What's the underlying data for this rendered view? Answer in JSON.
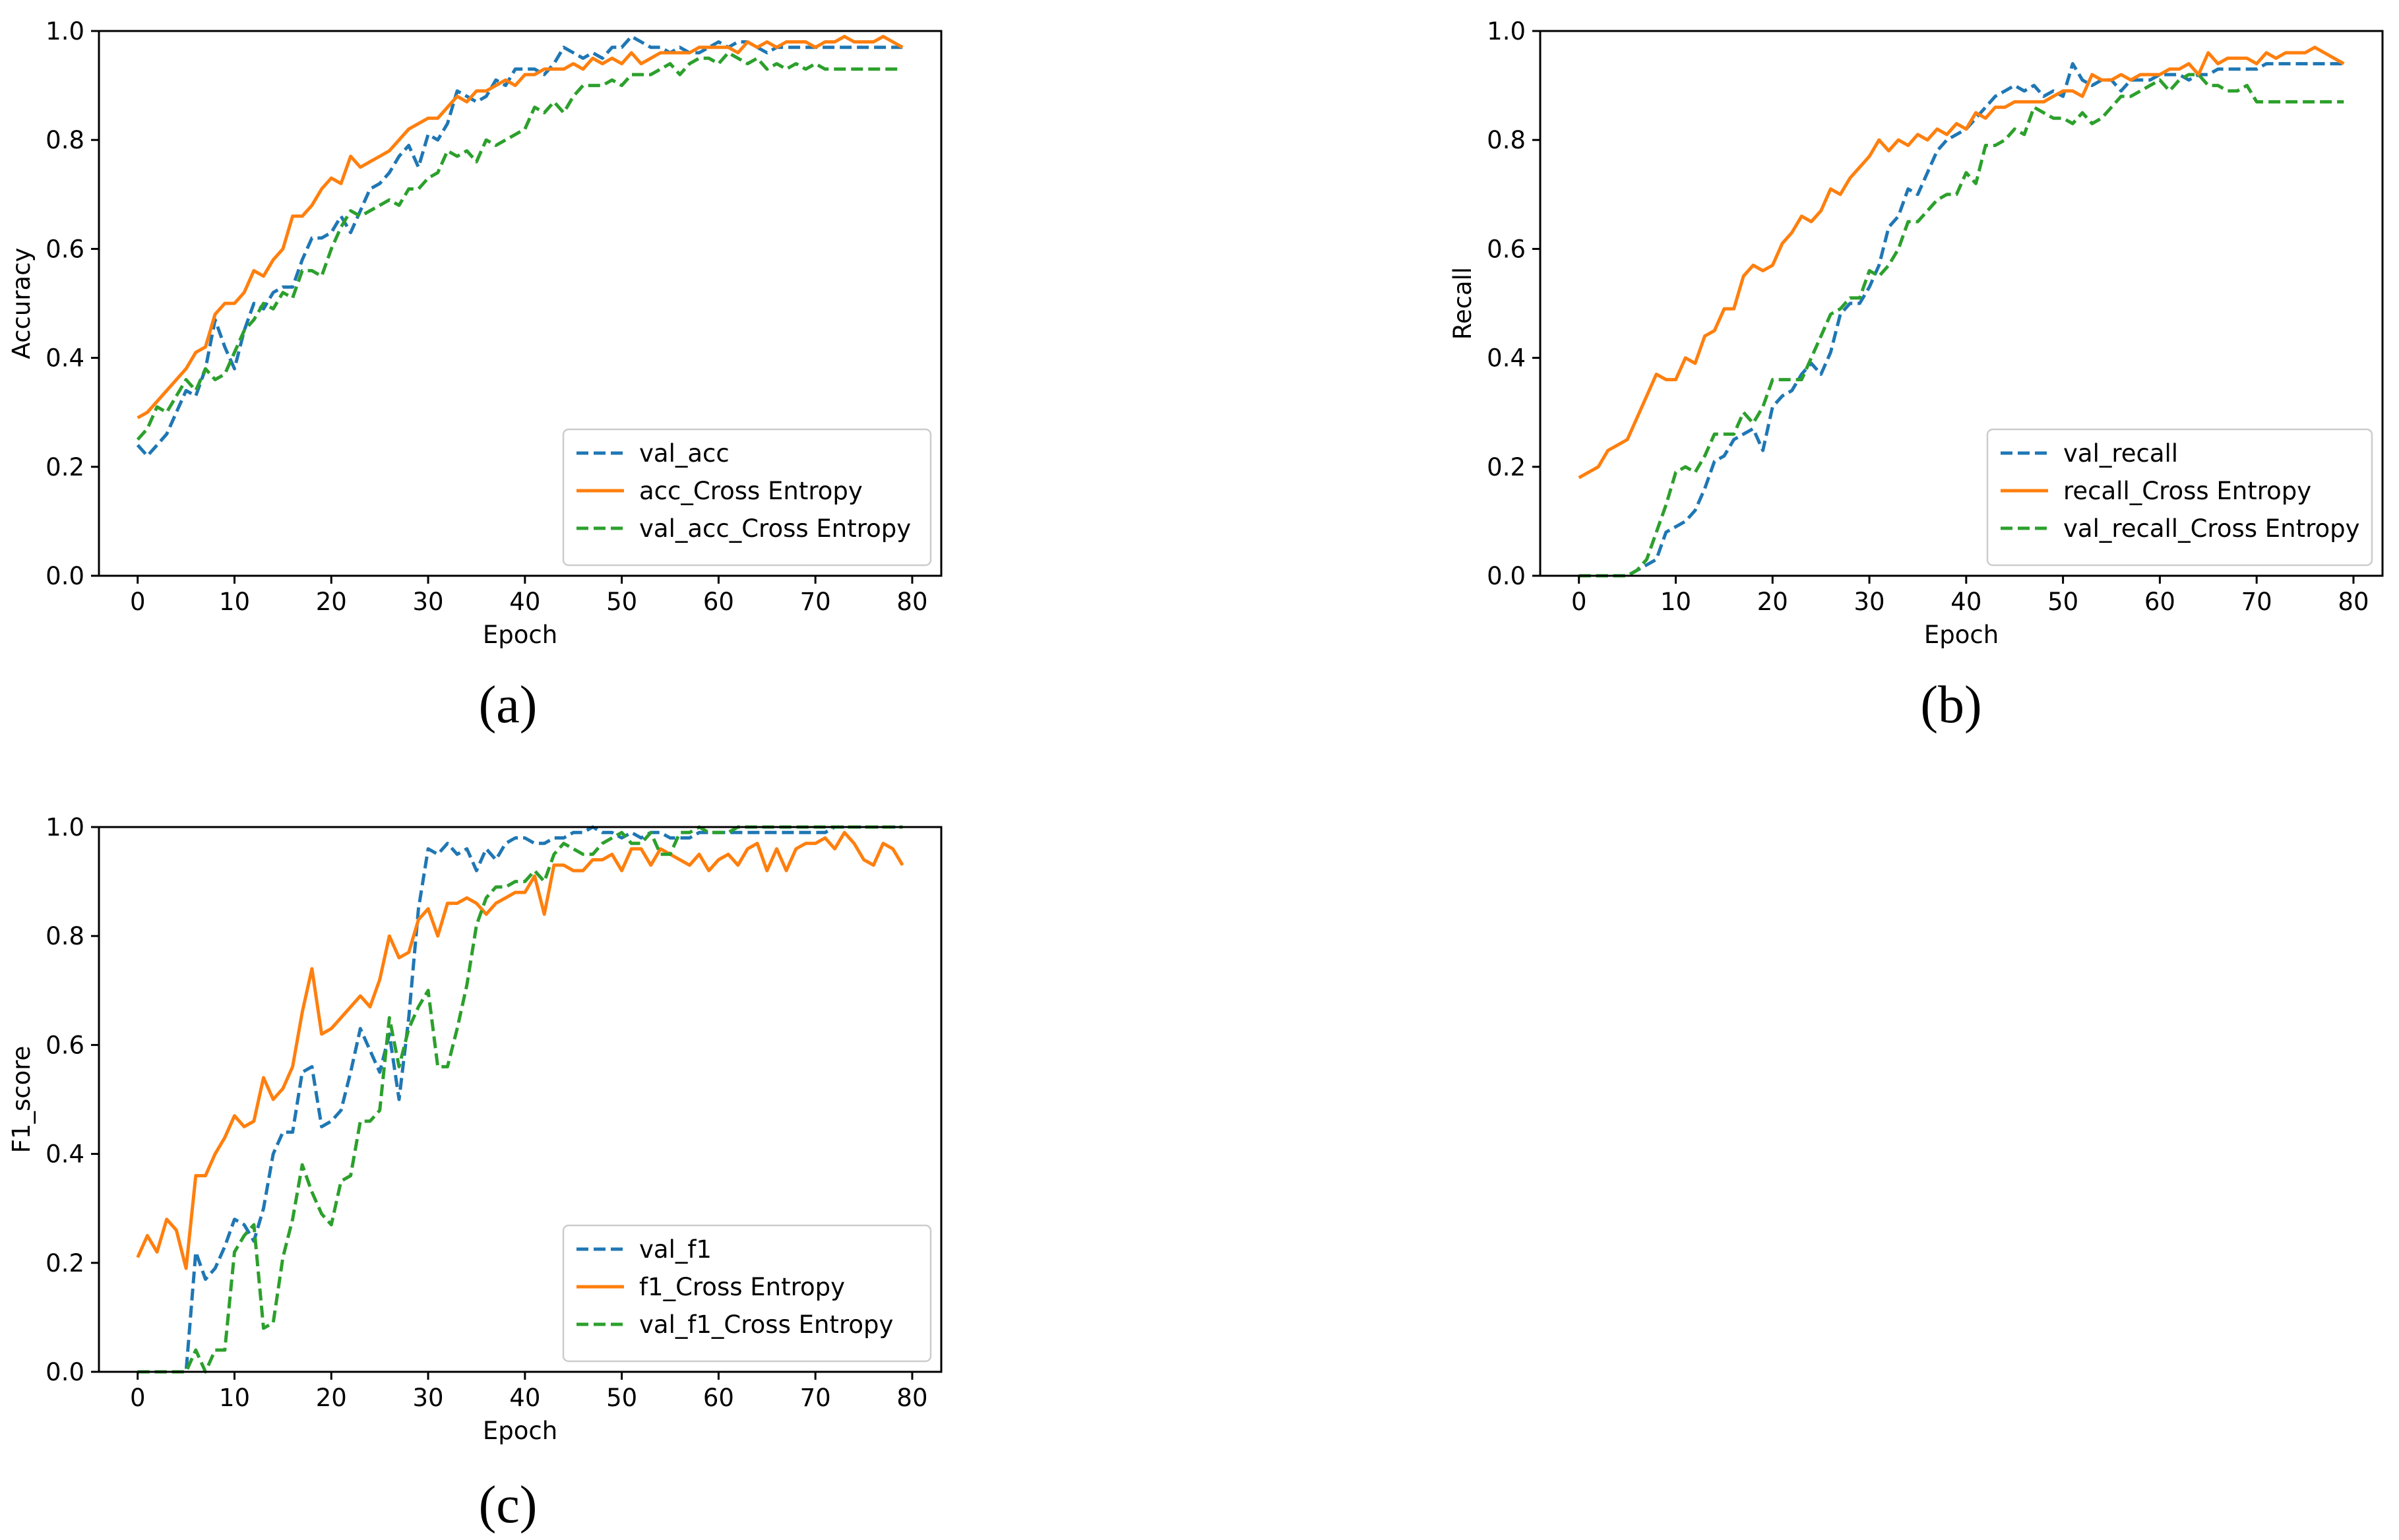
{
  "chart_data": [
    {
      "type": "line",
      "panel": "(a)",
      "xlabel": "Epoch",
      "ylabel": "Accuracy",
      "xlim": [
        -4,
        83
      ],
      "ylim": [
        0.0,
        1.0
      ],
      "xticks": [
        "0",
        "10",
        "20",
        "30",
        "40",
        "50",
        "60",
        "70",
        "80"
      ],
      "yticks": [
        "0.0",
        "0.2",
        "0.4",
        "0.6",
        "0.8",
        "1.0"
      ],
      "legend_position": "lower-right",
      "series": [
        {
          "name": "val_acc",
          "color": "#1f77b4",
          "style": "dashed",
          "values": [
            0.24,
            0.22,
            0.24,
            0.26,
            0.3,
            0.34,
            0.33,
            0.38,
            0.47,
            0.42,
            0.38,
            0.45,
            0.5,
            0.49,
            0.52,
            0.53,
            0.53,
            0.58,
            0.62,
            0.62,
            0.63,
            0.66,
            0.63,
            0.67,
            0.71,
            0.72,
            0.74,
            0.77,
            0.79,
            0.75,
            0.81,
            0.8,
            0.83,
            0.89,
            0.88,
            0.87,
            0.88,
            0.91,
            0.9,
            0.93,
            0.93,
            0.93,
            0.92,
            0.94,
            0.97,
            0.96,
            0.95,
            0.96,
            0.95,
            0.97,
            0.97,
            0.99,
            0.98,
            0.97,
            0.97,
            0.96,
            0.97,
            0.96,
            0.96,
            0.97,
            0.98,
            0.97,
            0.98,
            0.98,
            0.97,
            0.96,
            0.97,
            0.97,
            0.97,
            0.97,
            0.97,
            0.97,
            0.97,
            0.97,
            0.97,
            0.97,
            0.97,
            0.97,
            0.97,
            0.97
          ]
        },
        {
          "name": "acc_Cross Entropy",
          "color": "#ff7f0e",
          "style": "solid",
          "values": [
            0.29,
            0.3,
            0.32,
            0.34,
            0.36,
            0.38,
            0.41,
            0.42,
            0.48,
            0.5,
            0.5,
            0.52,
            0.56,
            0.55,
            0.58,
            0.6,
            0.66,
            0.66,
            0.68,
            0.71,
            0.73,
            0.72,
            0.77,
            0.75,
            0.76,
            0.77,
            0.78,
            0.8,
            0.82,
            0.83,
            0.84,
            0.84,
            0.86,
            0.88,
            0.87,
            0.89,
            0.89,
            0.9,
            0.91,
            0.9,
            0.92,
            0.92,
            0.93,
            0.93,
            0.93,
            0.94,
            0.93,
            0.95,
            0.94,
            0.95,
            0.94,
            0.96,
            0.94,
            0.95,
            0.96,
            0.96,
            0.96,
            0.96,
            0.97,
            0.97,
            0.97,
            0.97,
            0.96,
            0.98,
            0.97,
            0.98,
            0.97,
            0.98,
            0.98,
            0.98,
            0.97,
            0.98,
            0.98,
            0.99,
            0.98,
            0.98,
            0.98,
            0.99,
            0.98,
            0.97
          ]
        },
        {
          "name": "val_acc_Cross Entropy",
          "color": "#2ca02c",
          "style": "dashed",
          "values": [
            0.25,
            0.27,
            0.31,
            0.3,
            0.33,
            0.36,
            0.34,
            0.38,
            0.36,
            0.37,
            0.41,
            0.45,
            0.47,
            0.5,
            0.49,
            0.52,
            0.51,
            0.56,
            0.56,
            0.55,
            0.6,
            0.64,
            0.67,
            0.66,
            0.67,
            0.68,
            0.69,
            0.68,
            0.71,
            0.71,
            0.73,
            0.74,
            0.78,
            0.77,
            0.78,
            0.76,
            0.8,
            0.79,
            0.8,
            0.81,
            0.82,
            0.86,
            0.85,
            0.87,
            0.85,
            0.88,
            0.9,
            0.9,
            0.9,
            0.91,
            0.9,
            0.92,
            0.92,
            0.92,
            0.93,
            0.94,
            0.92,
            0.94,
            0.95,
            0.95,
            0.94,
            0.96,
            0.95,
            0.94,
            0.95,
            0.93,
            0.94,
            0.93,
            0.94,
            0.93,
            0.94,
            0.93,
            0.93,
            0.93,
            0.93,
            0.93,
            0.93,
            0.93,
            0.93,
            0.93
          ]
        }
      ]
    },
    {
      "type": "line",
      "panel": "(b)",
      "xlabel": "Epoch",
      "ylabel": "Recall",
      "xlim": [
        -4,
        83
      ],
      "ylim": [
        0.0,
        1.0
      ],
      "xticks": [
        "0",
        "10",
        "20",
        "30",
        "40",
        "50",
        "60",
        "70",
        "80"
      ],
      "yticks": [
        "0.0",
        "0.2",
        "0.4",
        "0.6",
        "0.8",
        "1.0"
      ],
      "legend_position": "lower-right",
      "series": [
        {
          "name": "val_recall",
          "color": "#1f77b4",
          "style": "dashed",
          "values": [
            0.0,
            0.0,
            0.0,
            0.0,
            0.0,
            0.0,
            0.01,
            0.02,
            0.03,
            0.08,
            0.09,
            0.1,
            0.12,
            0.16,
            0.21,
            0.22,
            0.25,
            0.26,
            0.27,
            0.23,
            0.31,
            0.33,
            0.34,
            0.37,
            0.39,
            0.37,
            0.41,
            0.48,
            0.5,
            0.5,
            0.53,
            0.57,
            0.64,
            0.66,
            0.71,
            0.7,
            0.74,
            0.78,
            0.8,
            0.81,
            0.82,
            0.84,
            0.86,
            0.88,
            0.89,
            0.9,
            0.89,
            0.9,
            0.88,
            0.89,
            0.88,
            0.94,
            0.91,
            0.9,
            0.91,
            0.91,
            0.89,
            0.91,
            0.91,
            0.91,
            0.92,
            0.92,
            0.92,
            0.91,
            0.92,
            0.92,
            0.93,
            0.93,
            0.93,
            0.93,
            0.93,
            0.94,
            0.94,
            0.94,
            0.94,
            0.94,
            0.94,
            0.94,
            0.94,
            0.94
          ]
        },
        {
          "name": "recall_Cross Entropy",
          "color": "#ff7f0e",
          "style": "solid",
          "values": [
            0.18,
            0.19,
            0.2,
            0.23,
            0.24,
            0.25,
            0.29,
            0.33,
            0.37,
            0.36,
            0.36,
            0.4,
            0.39,
            0.44,
            0.45,
            0.49,
            0.49,
            0.55,
            0.57,
            0.56,
            0.57,
            0.61,
            0.63,
            0.66,
            0.65,
            0.67,
            0.71,
            0.7,
            0.73,
            0.75,
            0.77,
            0.8,
            0.78,
            0.8,
            0.79,
            0.81,
            0.8,
            0.82,
            0.81,
            0.83,
            0.82,
            0.85,
            0.84,
            0.86,
            0.86,
            0.87,
            0.87,
            0.87,
            0.87,
            0.88,
            0.89,
            0.89,
            0.88,
            0.92,
            0.91,
            0.91,
            0.92,
            0.91,
            0.92,
            0.92,
            0.92,
            0.93,
            0.93,
            0.94,
            0.92,
            0.96,
            0.94,
            0.95,
            0.95,
            0.95,
            0.94,
            0.96,
            0.95,
            0.96,
            0.96,
            0.96,
            0.97,
            0.96,
            0.95,
            0.94
          ]
        },
        {
          "name": "val_recall_Cross Entropy",
          "color": "#2ca02c",
          "style": "dashed",
          "values": [
            0.0,
            0.0,
            0.0,
            0.0,
            0.0,
            0.0,
            0.01,
            0.03,
            0.08,
            0.13,
            0.19,
            0.2,
            0.19,
            0.22,
            0.26,
            0.26,
            0.26,
            0.3,
            0.28,
            0.31,
            0.36,
            0.36,
            0.36,
            0.36,
            0.4,
            0.44,
            0.48,
            0.49,
            0.51,
            0.51,
            0.56,
            0.55,
            0.57,
            0.6,
            0.65,
            0.65,
            0.67,
            0.69,
            0.7,
            0.7,
            0.74,
            0.72,
            0.79,
            0.79,
            0.8,
            0.82,
            0.81,
            0.86,
            0.85,
            0.84,
            0.84,
            0.83,
            0.85,
            0.83,
            0.84,
            0.86,
            0.88,
            0.88,
            0.89,
            0.9,
            0.91,
            0.89,
            0.91,
            0.92,
            0.92,
            0.9,
            0.9,
            0.89,
            0.89,
            0.9,
            0.87,
            0.87,
            0.87,
            0.87,
            0.87,
            0.87,
            0.87,
            0.87,
            0.87,
            0.87
          ]
        }
      ]
    },
    {
      "type": "line",
      "panel": "(c)",
      "xlabel": "Epoch",
      "ylabel": "F1_score",
      "xlim": [
        -4,
        83
      ],
      "ylim": [
        0.0,
        1.0
      ],
      "xticks": [
        "0",
        "10",
        "20",
        "30",
        "40",
        "50",
        "60",
        "70",
        "80"
      ],
      "yticks": [
        "0.0",
        "0.2",
        "0.4",
        "0.6",
        "0.8",
        "1.0"
      ],
      "legend_position": "lower-right",
      "series": [
        {
          "name": "val_f1",
          "color": "#1f77b4",
          "style": "dashed",
          "values": [
            0.0,
            0.0,
            0.0,
            0.0,
            0.0,
            0.0,
            0.22,
            0.17,
            0.19,
            0.23,
            0.28,
            0.27,
            0.24,
            0.3,
            0.4,
            0.44,
            0.44,
            0.55,
            0.56,
            0.45,
            0.46,
            0.48,
            0.55,
            0.63,
            0.59,
            0.55,
            0.62,
            0.5,
            0.65,
            0.85,
            0.96,
            0.95,
            0.97,
            0.95,
            0.96,
            0.92,
            0.96,
            0.94,
            0.97,
            0.98,
            0.98,
            0.97,
            0.97,
            0.98,
            0.98,
            0.99,
            0.99,
            1.0,
            0.99,
            0.99,
            0.98,
            0.99,
            0.98,
            0.99,
            0.99,
            0.98,
            0.98,
            0.98,
            0.99,
            0.99,
            0.99,
            0.99,
            0.99,
            0.99,
            0.99,
            0.99,
            0.99,
            0.99,
            0.99,
            0.99,
            0.99,
            0.99,
            1.0,
            1.0,
            1.0,
            1.0,
            1.0,
            1.0,
            1.0,
            1.0
          ]
        },
        {
          "name": "f1_Cross Entropy",
          "color": "#ff7f0e",
          "style": "solid",
          "values": [
            0.21,
            0.25,
            0.22,
            0.28,
            0.26,
            0.19,
            0.36,
            0.36,
            0.4,
            0.43,
            0.47,
            0.45,
            0.46,
            0.54,
            0.5,
            0.52,
            0.56,
            0.66,
            0.74,
            0.62,
            0.63,
            0.65,
            0.67,
            0.69,
            0.67,
            0.72,
            0.8,
            0.76,
            0.77,
            0.83,
            0.85,
            0.8,
            0.86,
            0.86,
            0.87,
            0.86,
            0.84,
            0.86,
            0.87,
            0.88,
            0.88,
            0.91,
            0.84,
            0.93,
            0.93,
            0.92,
            0.92,
            0.94,
            0.94,
            0.95,
            0.92,
            0.96,
            0.96,
            0.93,
            0.96,
            0.95,
            0.94,
            0.93,
            0.95,
            0.92,
            0.94,
            0.95,
            0.93,
            0.96,
            0.97,
            0.92,
            0.96,
            0.92,
            0.96,
            0.97,
            0.97,
            0.98,
            0.96,
            0.99,
            0.97,
            0.94,
            0.93,
            0.97,
            0.96,
            0.93
          ]
        },
        {
          "name": "val_f1_Cross Entropy",
          "color": "#2ca02c",
          "style": "dashed",
          "values": [
            0.0,
            0.0,
            0.0,
            0.0,
            0.0,
            0.0,
            0.04,
            0.0,
            0.04,
            0.04,
            0.22,
            0.25,
            0.27,
            0.08,
            0.09,
            0.21,
            0.28,
            0.38,
            0.33,
            0.29,
            0.27,
            0.35,
            0.36,
            0.46,
            0.46,
            0.48,
            0.65,
            0.56,
            0.63,
            0.67,
            0.7,
            0.56,
            0.56,
            0.63,
            0.71,
            0.82,
            0.87,
            0.89,
            0.89,
            0.9,
            0.9,
            0.92,
            0.9,
            0.95,
            0.97,
            0.96,
            0.95,
            0.95,
            0.97,
            0.98,
            0.99,
            0.97,
            0.97,
            0.99,
            0.95,
            0.95,
            0.99,
            0.99,
            1.0,
            0.99,
            0.99,
            0.99,
            1.0,
            1.0,
            1.0,
            1.0,
            1.0,
            1.0,
            1.0,
            1.0,
            1.0,
            1.0,
            1.0,
            1.0,
            1.0,
            1.0,
            1.0,
            1.0,
            1.0,
            1.0
          ]
        }
      ]
    }
  ]
}
